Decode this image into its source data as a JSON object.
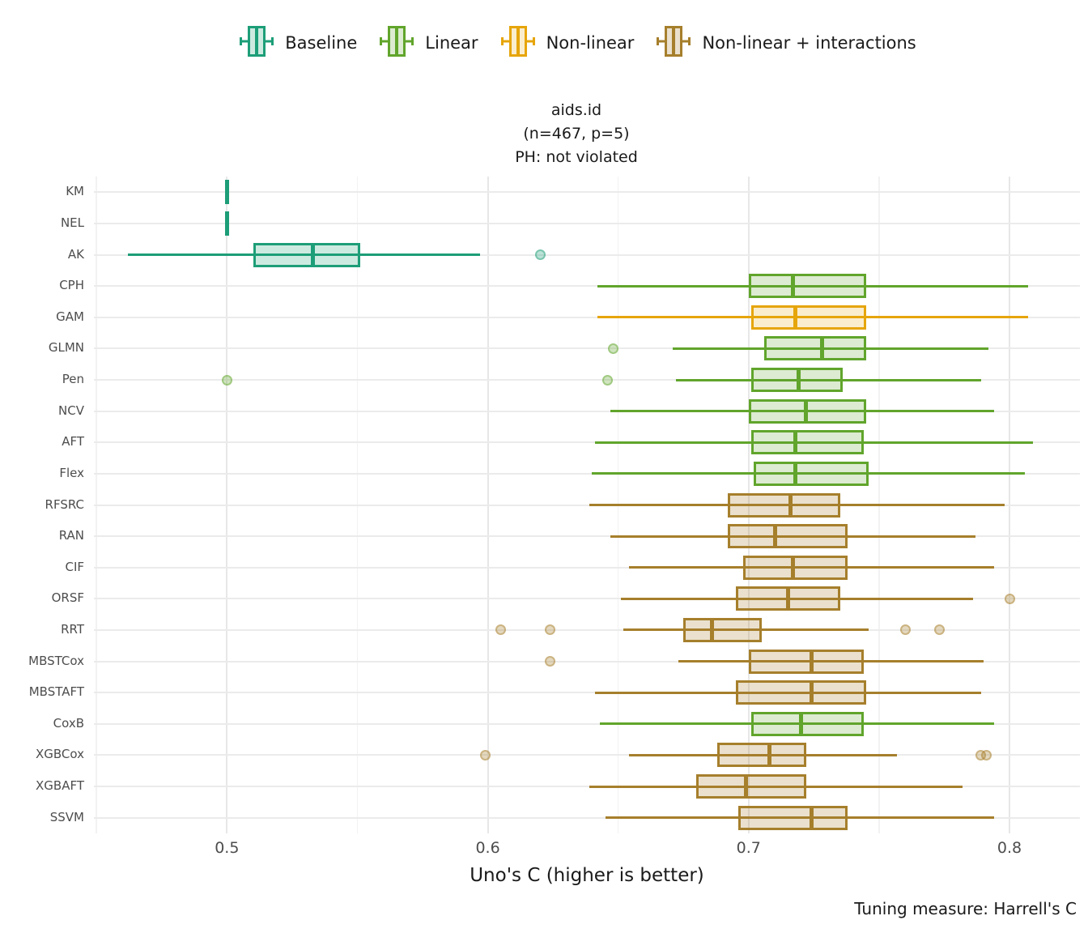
{
  "title": {
    "line1": "aids.id",
    "line2": "(n=467, p=5)",
    "line3": "PH: not violated"
  },
  "caption": "Tuning measure: Harrell's C",
  "legend": {
    "items": [
      {
        "group": "baseline",
        "label": "Baseline"
      },
      {
        "group": "linear",
        "label": "Linear"
      },
      {
        "group": "nonlinear",
        "label": "Non-linear"
      },
      {
        "group": "nonlinear_int",
        "label": "Non-linear + interactions"
      }
    ]
  },
  "axes": {
    "x_label": "Uno's C (higher is better)",
    "x_ticks": [
      {
        "value": 0.5,
        "label": "0.5"
      },
      {
        "value": 0.6,
        "label": "0.6"
      },
      {
        "value": 0.7,
        "label": "0.7"
      },
      {
        "value": 0.8,
        "label": "0.8"
      }
    ],
    "x_minor_ticks": [
      0.45,
      0.55,
      0.65,
      0.75
    ],
    "x_range": [
      0.449,
      0.827
    ],
    "grid": "on",
    "legend_position": "top"
  },
  "chart_data": {
    "type": "boxplot",
    "orientation": "horizontal",
    "groups": {
      "baseline": {
        "label": "Baseline",
        "stroke": "#1d9e78",
        "fill": "rgba(29,158,120,0.22)"
      },
      "linear": {
        "label": "Linear",
        "stroke": "#61a52c",
        "fill": "rgba(97,165,44,0.22)"
      },
      "nonlinear": {
        "label": "Non-linear",
        "stroke": "#e6a50b",
        "fill": "rgba(230,165,11,0.20)"
      },
      "nonlinear_int": {
        "label": "Non-linear + interactions",
        "stroke": "#a67f2c",
        "fill": "rgba(166,127,44,0.24)"
      }
    },
    "rows": [
      {
        "model": "KM",
        "group": "baseline",
        "min": 0.5,
        "q1": 0.5,
        "median": 0.5,
        "q3": 0.5,
        "max": 0.5,
        "outliers": []
      },
      {
        "model": "NEL",
        "group": "baseline",
        "min": 0.5,
        "q1": 0.5,
        "median": 0.5,
        "q3": 0.5,
        "max": 0.5,
        "outliers": []
      },
      {
        "model": "AK",
        "group": "baseline",
        "min": 0.462,
        "q1": 0.51,
        "median": 0.533,
        "q3": 0.551,
        "max": 0.597,
        "outliers": [
          0.62
        ]
      },
      {
        "model": "CPH",
        "group": "linear",
        "min": 0.642,
        "q1": 0.7,
        "median": 0.717,
        "q3": 0.745,
        "max": 0.807,
        "outliers": []
      },
      {
        "model": "GAM",
        "group": "nonlinear",
        "min": 0.642,
        "q1": 0.701,
        "median": 0.718,
        "q3": 0.745,
        "max": 0.807,
        "outliers": []
      },
      {
        "model": "GLMN",
        "group": "linear",
        "min": 0.671,
        "q1": 0.706,
        "median": 0.728,
        "q3": 0.745,
        "max": 0.792,
        "outliers": [
          0.648
        ]
      },
      {
        "model": "Pen",
        "group": "linear",
        "min": 0.672,
        "q1": 0.701,
        "median": 0.719,
        "q3": 0.736,
        "max": 0.789,
        "outliers": [
          0.5,
          0.646
        ]
      },
      {
        "model": "NCV",
        "group": "linear",
        "min": 0.647,
        "q1": 0.7,
        "median": 0.722,
        "q3": 0.745,
        "max": 0.794,
        "outliers": []
      },
      {
        "model": "AFT",
        "group": "linear",
        "min": 0.641,
        "q1": 0.701,
        "median": 0.718,
        "q3": 0.744,
        "max": 0.809,
        "outliers": []
      },
      {
        "model": "Flex",
        "group": "linear",
        "min": 0.64,
        "q1": 0.702,
        "median": 0.718,
        "q3": 0.746,
        "max": 0.806,
        "outliers": []
      },
      {
        "model": "RFSRC",
        "group": "nonlinear_int",
        "min": 0.639,
        "q1": 0.692,
        "median": 0.716,
        "q3": 0.735,
        "max": 0.798,
        "outliers": []
      },
      {
        "model": "RAN",
        "group": "nonlinear_int",
        "min": 0.647,
        "q1": 0.692,
        "median": 0.71,
        "q3": 0.738,
        "max": 0.787,
        "outliers": []
      },
      {
        "model": "CIF",
        "group": "nonlinear_int",
        "min": 0.654,
        "q1": 0.698,
        "median": 0.717,
        "q3": 0.738,
        "max": 0.794,
        "outliers": []
      },
      {
        "model": "ORSF",
        "group": "nonlinear_int",
        "min": 0.651,
        "q1": 0.695,
        "median": 0.715,
        "q3": 0.735,
        "max": 0.786,
        "outliers": [
          0.8
        ]
      },
      {
        "model": "RRT",
        "group": "nonlinear_int",
        "min": 0.652,
        "q1": 0.675,
        "median": 0.686,
        "q3": 0.705,
        "max": 0.746,
        "outliers": [
          0.605,
          0.624,
          0.76,
          0.773
        ]
      },
      {
        "model": "MBSTCox",
        "group": "nonlinear_int",
        "min": 0.673,
        "q1": 0.7,
        "median": 0.724,
        "q3": 0.744,
        "max": 0.79,
        "outliers": [
          0.624
        ]
      },
      {
        "model": "MBSTAFT",
        "group": "nonlinear_int",
        "min": 0.641,
        "q1": 0.695,
        "median": 0.724,
        "q3": 0.745,
        "max": 0.789,
        "outliers": []
      },
      {
        "model": "CoxB",
        "group": "linear",
        "min": 0.643,
        "q1": 0.701,
        "median": 0.72,
        "q3": 0.744,
        "max": 0.794,
        "outliers": []
      },
      {
        "model": "XGBCox",
        "group": "nonlinear_int",
        "min": 0.654,
        "q1": 0.688,
        "median": 0.708,
        "q3": 0.722,
        "max": 0.757,
        "outliers": [
          0.599,
          0.789,
          0.791
        ]
      },
      {
        "model": "XGBAFT",
        "group": "nonlinear_int",
        "min": 0.639,
        "q1": 0.68,
        "median": 0.699,
        "q3": 0.722,
        "max": 0.782,
        "outliers": []
      },
      {
        "model": "SSVM",
        "group": "nonlinear_int",
        "min": 0.645,
        "q1": 0.696,
        "median": 0.724,
        "q3": 0.738,
        "max": 0.794,
        "outliers": []
      }
    ]
  }
}
